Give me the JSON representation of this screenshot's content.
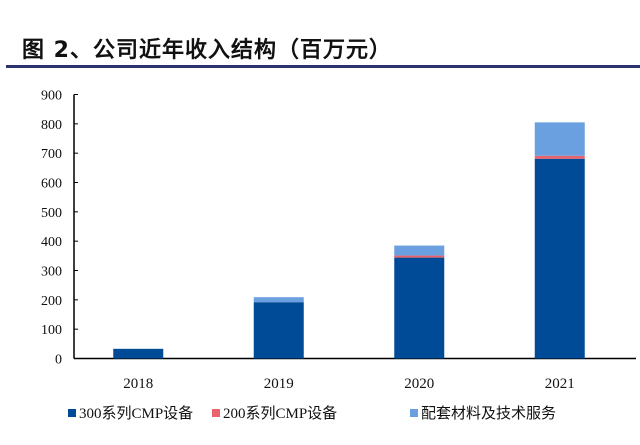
{
  "title": "图 2、公司近年收入结构（百万元）",
  "chart_data": {
    "type": "bar",
    "stacked": true,
    "title": "图 2、公司近年收入结构（百万元）",
    "xlabel": "",
    "ylabel": "",
    "categories": [
      "2018",
      "2019",
      "2020",
      "2021"
    ],
    "series": [
      {
        "name": "300系列CMP设备",
        "color": "#004b98",
        "values": [
          33,
          192,
          344,
          681
        ]
      },
      {
        "name": "200系列CMP设备",
        "color": "#e8636b",
        "values": [
          0,
          0,
          7,
          10
        ]
      },
      {
        "name": "配套材料及技术服务",
        "color": "#6aa0e0",
        "values": [
          0,
          17,
          34,
          114
        ]
      }
    ],
    "ylim": [
      0,
      900
    ],
    "yticks": [
      "0",
      "100",
      "200",
      "300",
      "400",
      "500",
      "600",
      "700",
      "800",
      "900"
    ],
    "grid": false,
    "legend": "bottom"
  }
}
